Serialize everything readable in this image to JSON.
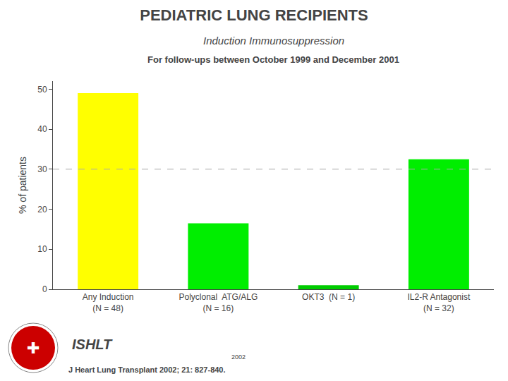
{
  "chart_data": {
    "type": "bar",
    "title": "PEDIATRIC LUNG RECIPIENTS",
    "subtitle": [
      "Induction Immunosuppression",
      "For follow-ups between October 1999 and December 2001"
    ],
    "categories": [
      "Any Induction\n(N = 48)",
      "Polyclonal  ATG/ALG\n(N = 16)",
      "OKT3  (N = 1)",
      "IL2-R Antagonist\n(N = 32)"
    ],
    "values": [
      49,
      16.5,
      1,
      32.5
    ],
    "colors": [
      "#ffff00",
      "#00ee00",
      "#00cc00",
      "#00ee00"
    ],
    "ylabel": "% of patients",
    "ylim": [
      0,
      52
    ],
    "yticks": [
      0,
      10,
      20,
      30,
      40,
      50
    ],
    "grid": false,
    "reference_line": {
      "y": 30,
      "line_style": "dashed",
      "color": "#aaaaaa"
    },
    "annotations": [
      "ISHLT",
      "J Heart Lung Transplant 2002; 21: 827-840.",
      "2002",
      "✚"
    ]
  }
}
